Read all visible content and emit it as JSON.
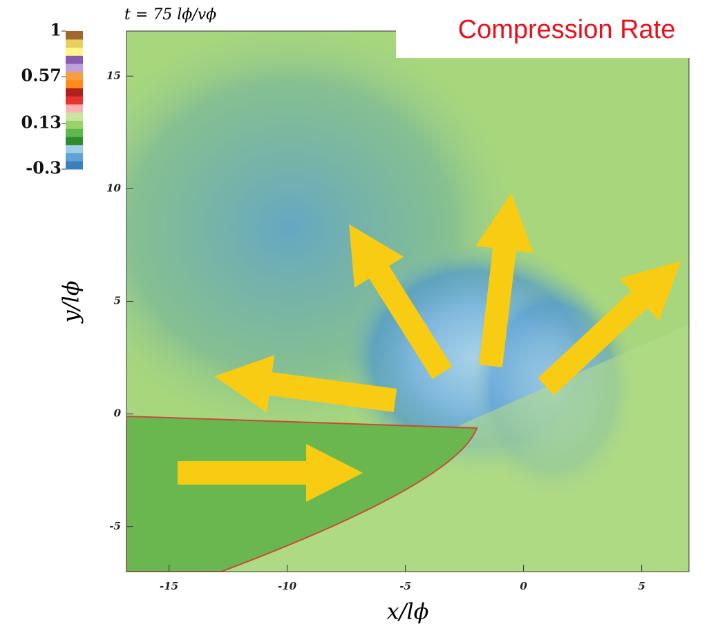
{
  "chart_data": {
    "type": "image",
    "title": "Compression Rate",
    "subtitle": "t = 75 lϕ/vϕ",
    "xlabel": "x/lϕ",
    "ylabel": "y/lϕ",
    "xlim": [
      -16.8,
      7
    ],
    "ylim": [
      -7,
      17
    ],
    "xticks": [
      -15,
      -10,
      -5,
      0,
      5
    ],
    "yticks": [
      -5,
      0,
      5,
      10,
      15
    ],
    "colorbar": {
      "clim": [
        -0.3,
        1
      ],
      "ticks": [
        -0.3,
        0.13,
        0.57,
        1
      ],
      "colors": [
        "#3a7fc0",
        "#5fa3d6",
        "#9fcde6",
        "#2e8b2e",
        "#5cb84c",
        "#9bd16b",
        "#c8e6a0",
        "#ffb0b0",
        "#e8332e",
        "#b02020",
        "#ff8c1a",
        "#f5a040",
        "#c0a0d8",
        "#8a5ab0",
        "#fff58a",
        "#e8d060",
        "#a0682a"
      ]
    }
  }
}
